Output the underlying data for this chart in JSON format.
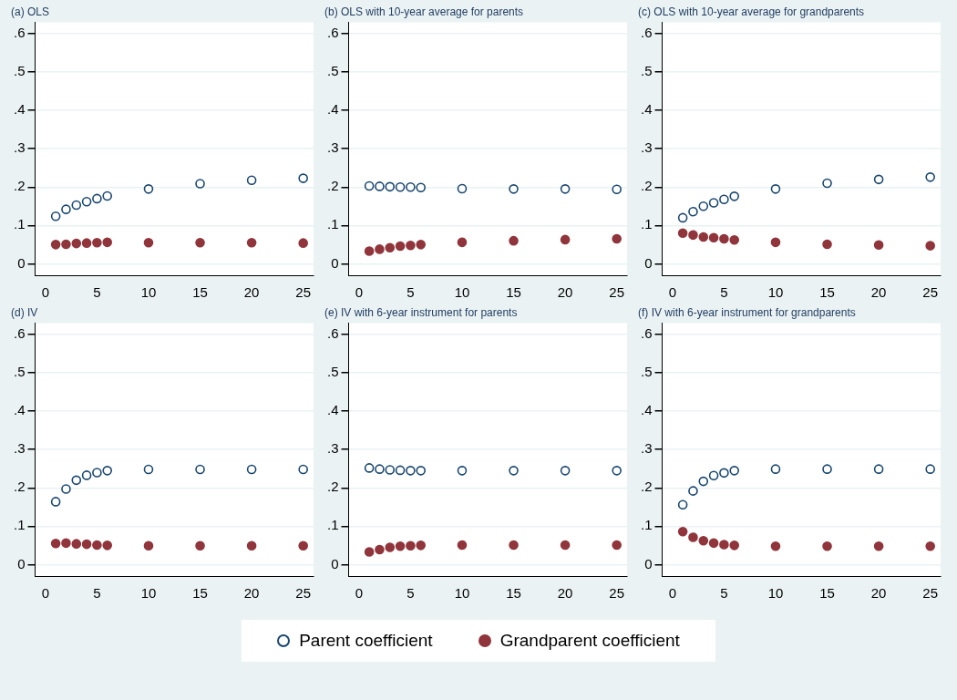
{
  "chart_data": [
    {
      "type": "scatter",
      "title": "(a) OLS",
      "x": [
        1,
        2,
        3,
        4,
        5,
        6,
        10,
        15,
        20,
        25
      ],
      "xlim": [
        -1,
        26
      ],
      "xticks": [
        0,
        5,
        10,
        15,
        20,
        25
      ],
      "ylim": [
        -0.03,
        0.63
      ],
      "yticks": [
        {
          "value": 0,
          "label": "0"
        },
        {
          "value": 0.1,
          "label": ".1"
        },
        {
          "value": 0.2,
          "label": ".2"
        },
        {
          "value": 0.3,
          "label": ".3"
        },
        {
          "value": 0.4,
          "label": ".4"
        },
        {
          "value": 0.5,
          "label": ".5"
        },
        {
          "value": 0.6,
          "label": ".6"
        }
      ],
      "grid": "y",
      "marker": "circle",
      "legend": "bottom",
      "series": [
        {
          "name": "Parent coefficient",
          "color": "#1a476f",
          "values": [
            0.124,
            0.142,
            0.153,
            0.162,
            0.17,
            0.177,
            0.195,
            0.209,
            0.218,
            0.223
          ]
        },
        {
          "name": "Grandparent coefficient",
          "color": "#90353b",
          "values": [
            0.05,
            0.051,
            0.053,
            0.054,
            0.055,
            0.056,
            0.055,
            0.055,
            0.055,
            0.054
          ]
        }
      ]
    },
    {
      "type": "scatter",
      "title": "(b) OLS with 10-year average for parents",
      "x": [
        1,
        2,
        3,
        4,
        5,
        6,
        10,
        15,
        20,
        25
      ],
      "xlim": [
        -1,
        26
      ],
      "xticks": [
        0,
        5,
        10,
        15,
        20,
        25
      ],
      "ylim": [
        -0.03,
        0.63
      ],
      "yticks": [
        {
          "value": 0,
          "label": "0"
        },
        {
          "value": 0.1,
          "label": ".1"
        },
        {
          "value": 0.2,
          "label": ".2"
        },
        {
          "value": 0.3,
          "label": ".3"
        },
        {
          "value": 0.4,
          "label": ".4"
        },
        {
          "value": 0.5,
          "label": ".5"
        },
        {
          "value": 0.6,
          "label": ".6"
        }
      ],
      "grid": "y",
      "marker": "circle",
      "series": [
        {
          "color": "#1a476f",
          "values": [
            0.203,
            0.202,
            0.201,
            0.2,
            0.2,
            0.199,
            0.196,
            0.195,
            0.195,
            0.194
          ]
        },
        {
          "color": "#90353b",
          "values": [
            0.033,
            0.038,
            0.042,
            0.046,
            0.048,
            0.05,
            0.056,
            0.06,
            0.063,
            0.065
          ]
        }
      ]
    },
    {
      "type": "scatter",
      "title": "(c) OLS with 10-year average for grandparents",
      "x": [
        1,
        2,
        3,
        4,
        5,
        6,
        10,
        15,
        20,
        25
      ],
      "xlim": [
        -1,
        26
      ],
      "xticks": [
        0,
        5,
        10,
        15,
        20,
        25
      ],
      "ylim": [
        -0.03,
        0.63
      ],
      "yticks": [
        {
          "value": 0,
          "label": "0"
        },
        {
          "value": 0.1,
          "label": ".1"
        },
        {
          "value": 0.2,
          "label": ".2"
        },
        {
          "value": 0.3,
          "label": ".3"
        },
        {
          "value": 0.4,
          "label": ".4"
        },
        {
          "value": 0.5,
          "label": ".5"
        },
        {
          "value": 0.6,
          "label": ".6"
        }
      ],
      "grid": "y",
      "marker": "circle",
      "series": [
        {
          "color": "#1a476f",
          "values": [
            0.12,
            0.136,
            0.15,
            0.159,
            0.168,
            0.176,
            0.195,
            0.21,
            0.22,
            0.226
          ]
        },
        {
          "color": "#90353b",
          "values": [
            0.08,
            0.075,
            0.07,
            0.068,
            0.065,
            0.062,
            0.056,
            0.051,
            0.049,
            0.047
          ]
        }
      ]
    },
    {
      "type": "scatter",
      "title": "(d) IV",
      "x": [
        1,
        2,
        3,
        4,
        5,
        6,
        10,
        15,
        20,
        25
      ],
      "xlim": [
        -1,
        26
      ],
      "xticks": [
        0,
        5,
        10,
        15,
        20,
        25
      ],
      "ylim": [
        -0.03,
        0.63
      ],
      "yticks": [
        {
          "value": 0,
          "label": "0"
        },
        {
          "value": 0.1,
          "label": ".1"
        },
        {
          "value": 0.2,
          "label": ".2"
        },
        {
          "value": 0.3,
          "label": ".3"
        },
        {
          "value": 0.4,
          "label": ".4"
        },
        {
          "value": 0.5,
          "label": ".5"
        },
        {
          "value": 0.6,
          "label": ".6"
        }
      ],
      "grid": "y",
      "marker": "circle",
      "series": [
        {
          "color": "#1a476f",
          "values": [
            0.164,
            0.197,
            0.22,
            0.233,
            0.24,
            0.245,
            0.248,
            0.248,
            0.248,
            0.248
          ]
        },
        {
          "color": "#90353b",
          "values": [
            0.055,
            0.056,
            0.054,
            0.053,
            0.051,
            0.05,
            0.049,
            0.049,
            0.049,
            0.049
          ]
        }
      ]
    },
    {
      "type": "scatter",
      "title": "(e) IV with 6-year instrument for parents",
      "x": [
        1,
        2,
        3,
        4,
        5,
        6,
        10,
        15,
        20,
        25
      ],
      "xlim": [
        -1,
        26
      ],
      "xticks": [
        0,
        5,
        10,
        15,
        20,
        25
      ],
      "ylim": [
        -0.03,
        0.63
      ],
      "yticks": [
        {
          "value": 0,
          "label": "0"
        },
        {
          "value": 0.1,
          "label": ".1"
        },
        {
          "value": 0.2,
          "label": ".2"
        },
        {
          "value": 0.3,
          "label": ".3"
        },
        {
          "value": 0.4,
          "label": ".4"
        },
        {
          "value": 0.5,
          "label": ".5"
        },
        {
          "value": 0.6,
          "label": ".6"
        }
      ],
      "grid": "y",
      "marker": "circle",
      "series": [
        {
          "color": "#1a476f",
          "values": [
            0.252,
            0.249,
            0.247,
            0.246,
            0.245,
            0.245,
            0.245,
            0.245,
            0.245,
            0.245
          ]
        },
        {
          "color": "#90353b",
          "values": [
            0.033,
            0.039,
            0.045,
            0.048,
            0.049,
            0.05,
            0.051,
            0.051,
            0.051,
            0.051
          ]
        }
      ]
    },
    {
      "type": "scatter",
      "title": "(f) IV with 6-year instrument for grandparents",
      "x": [
        1,
        2,
        3,
        4,
        5,
        6,
        10,
        15,
        20,
        25
      ],
      "xlim": [
        -1,
        26
      ],
      "xticks": [
        0,
        5,
        10,
        15,
        20,
        25
      ],
      "ylim": [
        -0.03,
        0.63
      ],
      "yticks": [
        {
          "value": 0,
          "label": "0"
        },
        {
          "value": 0.1,
          "label": ".1"
        },
        {
          "value": 0.2,
          "label": ".2"
        },
        {
          "value": 0.3,
          "label": ".3"
        },
        {
          "value": 0.4,
          "label": ".4"
        },
        {
          "value": 0.5,
          "label": ".5"
        },
        {
          "value": 0.6,
          "label": ".6"
        }
      ],
      "grid": "y",
      "marker": "circle",
      "series": [
        {
          "color": "#1a476f",
          "values": [
            0.156,
            0.192,
            0.217,
            0.232,
            0.239,
            0.245,
            0.249,
            0.249,
            0.249,
            0.249
          ]
        },
        {
          "color": "#90353b",
          "values": [
            0.086,
            0.071,
            0.062,
            0.056,
            0.052,
            0.05,
            0.048,
            0.048,
            0.048,
            0.048
          ]
        }
      ]
    }
  ]
}
